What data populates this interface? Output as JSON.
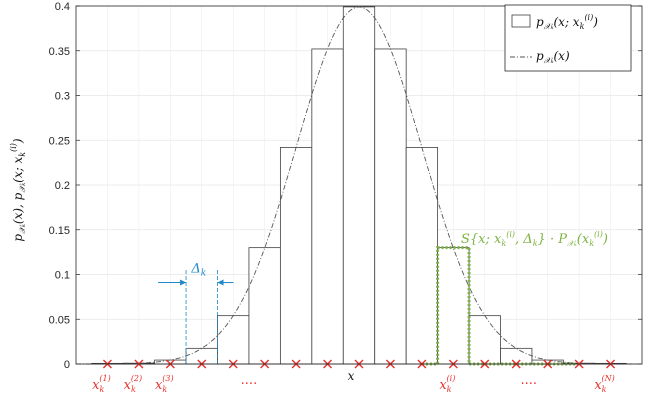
{
  "chart_data": {
    "type": "bar",
    "ylim": [
      0,
      0.4
    ],
    "yticks": [
      "0",
      "0.05",
      "0.1",
      "0.15",
      "0.2",
      "0.25",
      "0.3",
      "0.35",
      "0.4"
    ],
    "ylabel": "p𝒳ₖ(x), p𝒳ₖ(x; xₖ⁽ⁱ⁾)",
    "xlabel": "x",
    "grid": true,
    "legend_placement": "top-right",
    "legend": {
      "histogram": "p𝒳ₖ(x; xₖ⁽ⁱ⁾)",
      "density": "p𝒳ₖ(x)"
    },
    "histogram_bin_centers": [
      -4.0,
      -3.5,
      -3.0,
      -2.5,
      -2.0,
      -1.5,
      -1.0,
      -0.5,
      0.0,
      0.5,
      1.0,
      1.5,
      2.0,
      2.5,
      3.0,
      3.5,
      4.0
    ],
    "histogram_values": [
      0.0007,
      0.0009,
      0.0044,
      0.0175,
      0.054,
      0.13,
      0.242,
      0.352,
      0.399,
      0.352,
      0.242,
      0.13,
      0.054,
      0.0175,
      0.0044,
      0.0009,
      0.0007
    ],
    "bin_width_label": "Δₖ",
    "highlighted_bin": {
      "center": 1.5,
      "value": 0.13,
      "label": "S{x; xₖ⁽ⁱ⁾, Δₖ} · P𝒳ₖ(xₖ⁽ⁱ⁾)"
    },
    "sample_points": [
      -4.0,
      -3.5,
      -3.0,
      -2.5,
      -2.0,
      -1.5,
      -1.0,
      -0.5,
      0.0,
      0.5,
      1.0,
      1.5,
      2.0,
      2.5,
      3.0,
      3.5,
      4.0
    ],
    "sample_labels": [
      {
        "x": -4.0,
        "base": "x",
        "sub": "k",
        "sup": "(1)"
      },
      {
        "x": -3.5,
        "base": "x",
        "sub": "k",
        "sup": "(2)"
      },
      {
        "x": -3.0,
        "base": "x",
        "sub": "k",
        "sup": "(3)"
      },
      {
        "x": 1.5,
        "base": "x",
        "sub": "k",
        "sup": "(i)"
      },
      {
        "x": 4.0,
        "base": "x",
        "sub": "k",
        "sup": "(N)"
      }
    ],
    "ellipsis_labels": [
      {
        "x": -1.75,
        "text": "...."
      },
      {
        "x": 2.7,
        "text": "...."
      }
    ],
    "colors": {
      "samples": "#e8302c",
      "highlight": "#7cb342",
      "delta": "#1e88c8",
      "bars": "#404040",
      "density": "#555555"
    }
  }
}
